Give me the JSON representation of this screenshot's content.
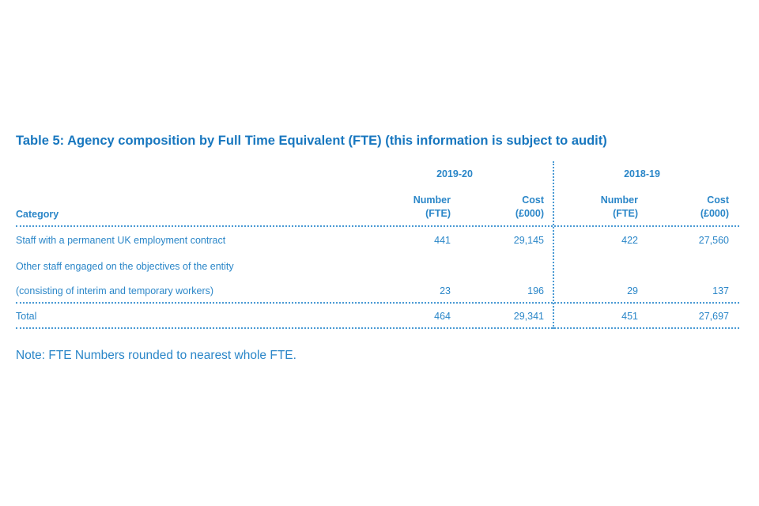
{
  "title": "Table 5:  Agency composition by Full Time Equivalent (FTE) (this information is subject to audit)",
  "years": {
    "y1": "2019-20",
    "y2": "2018-19"
  },
  "columns": {
    "category": "Category",
    "number_top": "Number",
    "number_bottom": "(FTE)",
    "cost_top": "Cost",
    "cost_bottom": "(£000)"
  },
  "rows": [
    {
      "category": "Staff with a permanent UK employment contract",
      "n1": "441",
      "c1": "29,145",
      "n2": "422",
      "c2": "27,560"
    },
    {
      "category": "Other staff engaged on the objectives of the entity",
      "n1": "",
      "c1": "",
      "n2": "",
      "c2": ""
    },
    {
      "category": "(consisting of interim and temporary workers)",
      "n1": "23",
      "c1": "196",
      "n2": "29",
      "c2": "137"
    },
    {
      "category": "Total",
      "n1": "464",
      "c1": "29,341",
      "n2": "451",
      "c2": "27,697"
    }
  ],
  "note": "Note: FTE Numbers rounded to nearest whole FTE."
}
